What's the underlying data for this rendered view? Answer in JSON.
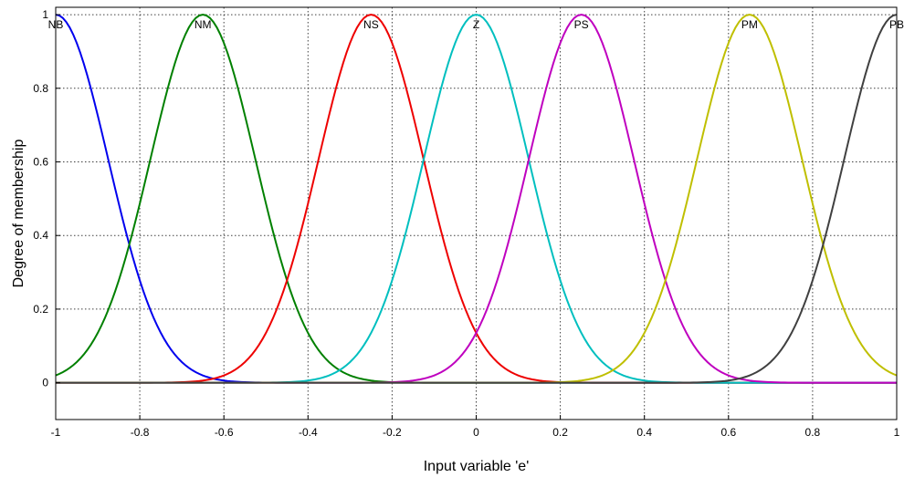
{
  "chart_data": {
    "type": "line",
    "title": "",
    "xlabel": "Input variable 'e'",
    "ylabel": "Degree of membership",
    "xlim": [
      -1,
      1
    ],
    "ylim": [
      -0.1,
      1.02
    ],
    "grid": true,
    "x_ticks": [
      -1,
      -0.8,
      -0.6,
      -0.4,
      -0.2,
      0,
      0.2,
      0.4,
      0.6,
      0.8,
      1
    ],
    "x_tick_labels": [
      "-1",
      "-0.8",
      "-0.6",
      "-0.4",
      "-0.2",
      "0",
      "0.2",
      "0.4",
      "0.6",
      "0.8",
      "1"
    ],
    "y_ticks": [
      0,
      0.2,
      0.4,
      0.6,
      0.8,
      1
    ],
    "y_tick_labels": [
      "0",
      "0.2",
      "0.4",
      "0.6",
      "0.8",
      "1"
    ],
    "curve_shape": "gaussian",
    "series": [
      {
        "name": "NB",
        "center": -1.0,
        "sigma": 0.125,
        "color": "#0000ee"
      },
      {
        "name": "NM",
        "center": -0.65,
        "sigma": 0.125,
        "color": "#008000"
      },
      {
        "name": "NS",
        "center": -0.25,
        "sigma": 0.125,
        "color": "#ee0000"
      },
      {
        "name": "Z",
        "center": 0.0,
        "sigma": 0.125,
        "color": "#00bfbf"
      },
      {
        "name": "PS",
        "center": 0.25,
        "sigma": 0.125,
        "color": "#bf00bf"
      },
      {
        "name": "PM",
        "center": 0.65,
        "sigma": 0.125,
        "color": "#bfbf00"
      },
      {
        "name": "PB",
        "center": 1.0,
        "sigma": 0.125,
        "color": "#404040"
      }
    ]
  }
}
